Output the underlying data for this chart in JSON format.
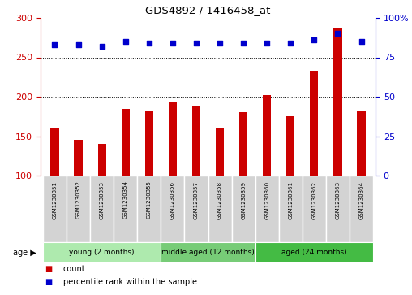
{
  "title": "GDS4892 / 1416458_at",
  "samples": [
    "GSM1230351",
    "GSM1230352",
    "GSM1230353",
    "GSM1230354",
    "GSM1230355",
    "GSM1230356",
    "GSM1230357",
    "GSM1230358",
    "GSM1230359",
    "GSM1230360",
    "GSM1230361",
    "GSM1230362",
    "GSM1230363",
    "GSM1230364"
  ],
  "counts": [
    160,
    145,
    140,
    185,
    182,
    193,
    189,
    160,
    180,
    202,
    175,
    233,
    287,
    182
  ],
  "percentiles": [
    83,
    83,
    82,
    85,
    84,
    84,
    84,
    84,
    84,
    84,
    84,
    86,
    90,
    85
  ],
  "bar_color": "#cc0000",
  "dot_color": "#0000cc",
  "ylim_left": [
    100,
    300
  ],
  "ylim_right": [
    0,
    100
  ],
  "yticks_left": [
    100,
    150,
    200,
    250,
    300
  ],
  "yticks_right": [
    0,
    25,
    50,
    75,
    100
  ],
  "ytick_right_labels": [
    "0",
    "25",
    "50",
    "75",
    "100%"
  ],
  "groups": [
    {
      "label": "young (2 months)",
      "start": 0,
      "end": 5,
      "color": "#aeeaae"
    },
    {
      "label": "middle aged (12 months)",
      "start": 5,
      "end": 9,
      "color": "#77cc77"
    },
    {
      "label": "aged (24 months)",
      "start": 9,
      "end": 14,
      "color": "#44bb44"
    }
  ],
  "age_label": "age",
  "legend_count_label": "count",
  "legend_pct_label": "percentile rank within the sample",
  "grid_dotted_values": [
    150,
    200,
    250
  ],
  "background_color": "#ffffff",
  "sample_area_color": "#d3d3d3"
}
